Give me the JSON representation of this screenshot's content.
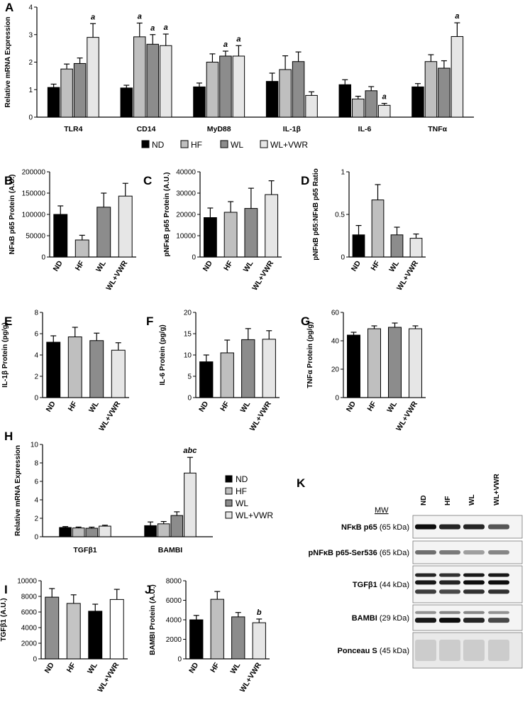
{
  "colors": {
    "ND": "#000000",
    "HF": "#bfbfbf",
    "WL": "#8c8c8c",
    "WLVWR": "#e6e6e6",
    "I_ND": "#8f8f8f",
    "I_HF": "#c4c4c4",
    "I_WL": "#000000",
    "I_WLVWR": "#ffffff"
  },
  "legend": [
    "ND",
    "HF",
    "WL",
    "WL+VWR"
  ],
  "chart_data": [
    {
      "panel": "A",
      "type": "bar",
      "ylabel": "Relative mRNA Expression",
      "ylim": [
        0,
        4
      ],
      "yticks": [
        0,
        1,
        2,
        3,
        4
      ],
      "categories": [
        "TLR4",
        "CD14",
        "MyD88",
        "IL-1β",
        "IL-6",
        "TNFα"
      ],
      "series": [
        {
          "name": "ND",
          "values": [
            1.08,
            1.06,
            1.1,
            1.3,
            1.18,
            1.1
          ],
          "errors": [
            0.12,
            0.1,
            0.14,
            0.3,
            0.18,
            0.12
          ]
        },
        {
          "name": "HF",
          "values": [
            1.75,
            2.92,
            2.0,
            1.73,
            0.66,
            2.02
          ],
          "errors": [
            0.18,
            0.5,
            0.3,
            0.5,
            0.1,
            0.25
          ]
        },
        {
          "name": "WL",
          "values": [
            1.95,
            2.65,
            2.22,
            2.02,
            0.96,
            1.78
          ],
          "errors": [
            0.2,
            0.35,
            0.18,
            0.35,
            0.15,
            0.27
          ]
        },
        {
          "name": "WL+VWR",
          "values": [
            2.9,
            2.6,
            2.22,
            0.79,
            0.43,
            2.93
          ],
          "errors": [
            0.5,
            0.42,
            0.38,
            0.13,
            0.07,
            0.5
          ]
        }
      ],
      "annotations": [
        {
          "category": "TLR4",
          "series": "WL+VWR",
          "text": "a"
        },
        {
          "category": "CD14",
          "series": "HF",
          "text": "a"
        },
        {
          "category": "CD14",
          "series": "WL",
          "text": "a"
        },
        {
          "category": "CD14",
          "series": "WL+VWR",
          "text": "a"
        },
        {
          "category": "MyD88",
          "series": "WL",
          "text": "a"
        },
        {
          "category": "MyD88",
          "series": "WL+VWR",
          "text": "a"
        },
        {
          "category": "IL-6",
          "series": "WL+VWR",
          "text": "a"
        },
        {
          "category": "TNFα",
          "series": "WL+VWR",
          "text": "a"
        }
      ]
    },
    {
      "panel": "B",
      "type": "bar",
      "ylabel": "NFκB p65 Protein (A.U.)",
      "ylim": [
        0,
        200000
      ],
      "yticks": [
        0,
        50000,
        100000,
        150000,
        200000
      ],
      "categories": [
        "ND",
        "HF",
        "WL",
        "WL+VWR"
      ],
      "values": [
        100000,
        40000,
        117000,
        143000
      ],
      "errors": [
        20000,
        11000,
        33000,
        30000
      ]
    },
    {
      "panel": "C",
      "type": "bar",
      "ylabel": "pNFκB p65 Protein (A.U.)",
      "ylim": [
        0,
        40000
      ],
      "yticks": [
        0,
        10000,
        20000,
        30000,
        40000
      ],
      "categories": [
        "ND",
        "HF",
        "WL",
        "WL+VWR"
      ],
      "values": [
        18500,
        21000,
        22800,
        29300
      ],
      "errors": [
        4500,
        5000,
        9500,
        6500
      ]
    },
    {
      "panel": "D",
      "type": "bar",
      "ylabel": "pNFκB p65:NFκB p65 Ratio",
      "ylim": [
        0,
        1.0
      ],
      "yticks": [
        0.0,
        0.5,
        1.0
      ],
      "categories": [
        "ND",
        "HF",
        "WL",
        "WL+VWR"
      ],
      "values": [
        0.26,
        0.67,
        0.26,
        0.22
      ],
      "errors": [
        0.11,
        0.18,
        0.09,
        0.05
      ]
    },
    {
      "panel": "E",
      "type": "bar",
      "ylabel": "IL-1β Protein (pg/g)",
      "ylim": [
        0,
        8
      ],
      "yticks": [
        0,
        2,
        4,
        6,
        8
      ],
      "categories": [
        "ND",
        "HF",
        "WL",
        "WL+VWR"
      ],
      "values": [
        5.2,
        5.7,
        5.35,
        4.45
      ],
      "errors": [
        0.6,
        0.9,
        0.7,
        0.7
      ]
    },
    {
      "panel": "F",
      "type": "bar",
      "ylabel": "IL-6 Protein (pg/g)",
      "ylim": [
        0,
        20
      ],
      "yticks": [
        0,
        5,
        10,
        15,
        20
      ],
      "categories": [
        "ND",
        "HF",
        "WL",
        "WL+VWR"
      ],
      "values": [
        8.4,
        10.5,
        13.6,
        13.7
      ],
      "errors": [
        1.6,
        3.0,
        2.6,
        2.0
      ]
    },
    {
      "panel": "G",
      "type": "bar",
      "ylabel": "TNFα Protein (pg/g)",
      "ylim": [
        0,
        60
      ],
      "yticks": [
        0,
        20,
        40,
        60
      ],
      "categories": [
        "ND",
        "HF",
        "WL",
        "WL+VWR"
      ],
      "values": [
        44,
        48.5,
        49.5,
        48.5
      ],
      "errors": [
        2,
        2,
        3,
        2
      ]
    },
    {
      "panel": "H",
      "type": "bar",
      "ylabel": "Relative mRNA Expression",
      "ylim": [
        0,
        10
      ],
      "yticks": [
        0,
        2,
        4,
        6,
        8,
        10
      ],
      "categories": [
        "TGFβ1",
        "BAMBI"
      ],
      "series": [
        {
          "name": "ND",
          "values": [
            1.0,
            1.2
          ],
          "errors": [
            0.1,
            0.4
          ]
        },
        {
          "name": "HF",
          "values": [
            0.95,
            1.4
          ],
          "errors": [
            0.1,
            0.25
          ]
        },
        {
          "name": "WL",
          "values": [
            0.92,
            2.3
          ],
          "errors": [
            0.12,
            0.4
          ]
        },
        {
          "name": "WL+VWR",
          "values": [
            1.15,
            6.9
          ],
          "errors": [
            0.1,
            1.7
          ]
        }
      ],
      "annotations": [
        {
          "category": "BAMBI",
          "series": "WL+VWR",
          "text": "abc"
        }
      ]
    },
    {
      "panel": "I",
      "type": "bar",
      "ylabel": "TGFβ1 (A.U.)",
      "ylim": [
        0,
        10000
      ],
      "yticks": [
        0,
        2000,
        4000,
        6000,
        8000,
        10000
      ],
      "categories": [
        "ND",
        "HF",
        "WL",
        "WL+VWR"
      ],
      "values": [
        7900,
        7100,
        6100,
        7600
      ],
      "errors": [
        1100,
        1100,
        900,
        1300
      ]
    },
    {
      "panel": "J",
      "type": "bar",
      "ylabel": "BAMBI Protein (A.U.)",
      "ylim": [
        0,
        8000
      ],
      "yticks": [
        0,
        2000,
        4000,
        6000,
        8000
      ],
      "categories": [
        "ND",
        "HF",
        "WL",
        "WL+VWR"
      ],
      "values": [
        4000,
        6100,
        4300,
        3700
      ],
      "errors": [
        450,
        800,
        450,
        380
      ],
      "annotations": [
        {
          "category": "WL+VWR",
          "text": "b"
        }
      ]
    }
  ],
  "blot": {
    "panel": "K",
    "mw_label": "MW",
    "lanes": [
      "ND",
      "HF",
      "WL",
      "WL+VWR"
    ],
    "rows": [
      {
        "name": "NFκB p65",
        "mw": "(65 kDa)"
      },
      {
        "name": "pNFκB p65-Ser536",
        "mw": "(65 kDa)"
      },
      {
        "name": "TGFβ1",
        "mw": "(44 kDa)"
      },
      {
        "name": "BAMBI",
        "mw": "(29 kDa)"
      },
      {
        "name": "Ponceau S",
        "mw": "(45 kDa)"
      }
    ]
  }
}
